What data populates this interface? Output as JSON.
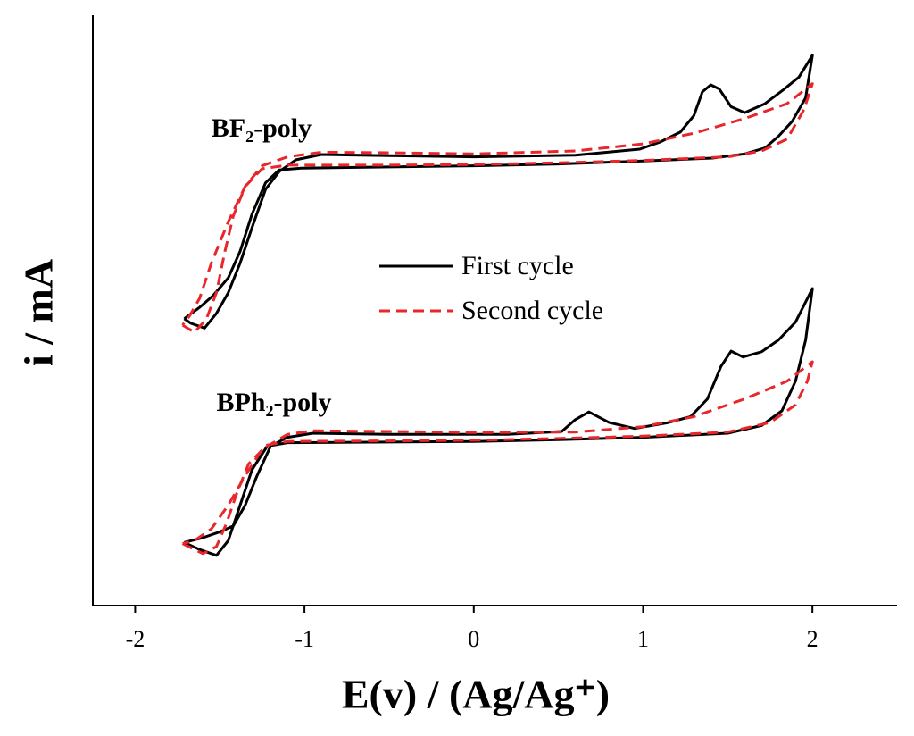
{
  "chart_data": {
    "type": "line",
    "xlabel": "E(v) / (Ag/Ag⁺)",
    "ylabel": "i / mA",
    "xlim": [
      -2.25,
      2.5
    ],
    "xticks": [
      -2,
      -1,
      0,
      1,
      2
    ],
    "ylim": [
      0,
      100
    ],
    "legend": "center",
    "annotations": [
      {
        "text": "BF₂-poly",
        "x": -1.55,
        "y": 80.5
      },
      {
        "text": "BPh₂-poly",
        "x": -1.52,
        "y": 34
      }
    ],
    "series": [
      {
        "name": "First cycle",
        "color": "#000000",
        "dash": "solid",
        "x": [
          -1.71,
          -1.62,
          -1.54,
          -1.45,
          -1.38,
          -1.31,
          -1.23,
          -1.15,
          -1.02,
          -0.5,
          0,
          0.5,
          1.0,
          1.41,
          1.6,
          1.72,
          1.8,
          1.88,
          1.96,
          2.0,
          1.92,
          1.83,
          1.72,
          1.6,
          1.52,
          1.45,
          1.4,
          1.35,
          1.3,
          1.22,
          1.1,
          0.98,
          0.6,
          0,
          -0.5,
          -0.9,
          -1.05,
          -1.15,
          -1.23,
          -1.31,
          -1.38,
          -1.45,
          -1.52,
          -1.59,
          -1.67,
          -1.71,
          null,
          -1.71,
          -1.62,
          -1.52,
          -1.45,
          -1.38,
          -1.31,
          -1.22,
          -1.1,
          -0.5,
          0,
          0.5,
          1.0,
          1.5,
          1.7,
          1.82,
          1.9,
          1.96,
          2.0,
          1.9,
          1.8,
          1.7,
          1.59,
          1.52,
          1.46,
          1.38,
          1.28,
          1.15,
          0.95,
          0.8,
          0.68,
          0.6,
          0.52,
          0.2,
          -0.5,
          -0.95,
          -1.1,
          -1.2,
          -1.28,
          -1.35,
          -1.42,
          -1.5,
          -1.6,
          -1.71
        ],
        "values": [
          48.6,
          50.5,
          52.5,
          55.5,
          60,
          66.3,
          71.6,
          73.8,
          74.1,
          74.3,
          74.5,
          74.8,
          75.3,
          75.8,
          76.5,
          77.5,
          79.5,
          82,
          86,
          93.2,
          89.5,
          87.4,
          85,
          83.5,
          84.5,
          87.5,
          88.2,
          87,
          83,
          80.2,
          78.5,
          77.3,
          76.3,
          76,
          76.2,
          76.4,
          75.5,
          73.5,
          70.5,
          64,
          58,
          53,
          49.5,
          47.0,
          47.8,
          48.6,
          null,
          10.7,
          9.5,
          8.5,
          11,
          17,
          23,
          27,
          27.6,
          27.7,
          27.8,
          28.1,
          28.5,
          29.2,
          30.5,
          33,
          38,
          45,
          53.7,
          48,
          45,
          43,
          42.1,
          43.1,
          40.5,
          35,
          32,
          31,
          30.0,
          31,
          32.8,
          31.5,
          29.5,
          29,
          29,
          29.2,
          28.5,
          27,
          22,
          17,
          13.5,
          12.5,
          11.5,
          10.7
        ]
      },
      {
        "name": "Second cycle",
        "color": "#e8262b",
        "dash": "dashed",
        "x": [
          -1.72,
          -1.65,
          -1.58,
          -1.52,
          -1.47,
          -1.42,
          -1.35,
          -1.25,
          -1.1,
          -0.5,
          0,
          0.5,
          1.0,
          1.5,
          1.7,
          1.85,
          1.95,
          2.0,
          1.85,
          1.6,
          1.3,
          1.0,
          0.6,
          0,
          -0.5,
          -0.9,
          -1.1,
          -1.25,
          -1.35,
          -1.45,
          -1.55,
          -1.62,
          -1.68,
          -1.72,
          null,
          -1.72,
          -1.6,
          -1.52,
          -1.46,
          -1.4,
          -1.33,
          -1.22,
          -1.1,
          -0.5,
          0,
          0.5,
          1.0,
          1.5,
          1.75,
          1.9,
          1.97,
          2.0,
          1.85,
          1.6,
          1.3,
          1.0,
          0.6,
          0,
          -0.5,
          -0.95,
          -1.1,
          -1.25,
          -1.35,
          -1.45,
          -1.55,
          -1.65,
          -1.72
        ],
        "values": [
          47.5,
          46.3,
          48.5,
          53,
          60,
          66,
          71,
          74,
          74.6,
          74.6,
          74.7,
          75,
          75.4,
          76,
          77,
          79,
          84,
          88.4,
          85,
          82.5,
          80,
          78.2,
          77,
          76.5,
          76.7,
          76.8,
          76,
          74.5,
          71,
          65,
          58,
          52,
          49,
          47.5,
          null,
          10.5,
          8.8,
          10,
          14,
          19,
          24,
          27.2,
          27.8,
          27.9,
          28,
          28.3,
          28.7,
          29.4,
          31,
          34,
          38,
          41.3,
          38,
          35,
          32,
          30.3,
          29.4,
          29.3,
          29.5,
          29.6,
          29,
          26.5,
          22,
          17,
          13,
          11,
          10.5
        ]
      }
    ]
  }
}
